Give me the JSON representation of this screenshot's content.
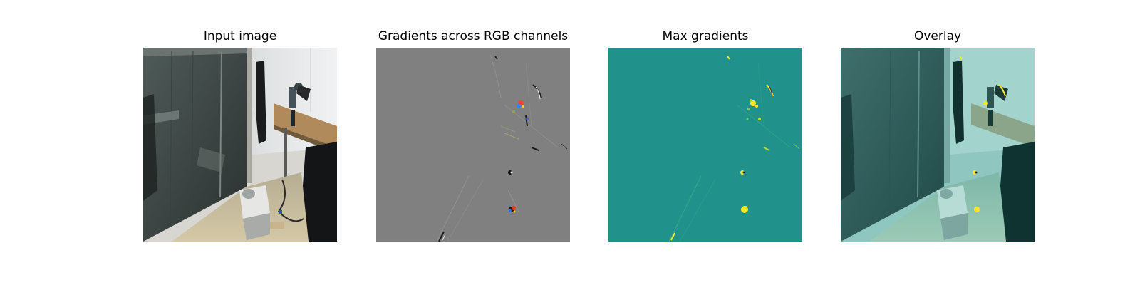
{
  "figure": {
    "panels": [
      {
        "title": "Input image"
      },
      {
        "title": "Gradients across RGB channels"
      },
      {
        "title": "Max gradients"
      },
      {
        "title": "Overlay"
      }
    ],
    "colors": {
      "gradient_background": "#808080",
      "max_gradient_background": "#21918c",
      "max_gradient_highlight": "#fde725",
      "overlay_tint": "#21918c"
    }
  }
}
